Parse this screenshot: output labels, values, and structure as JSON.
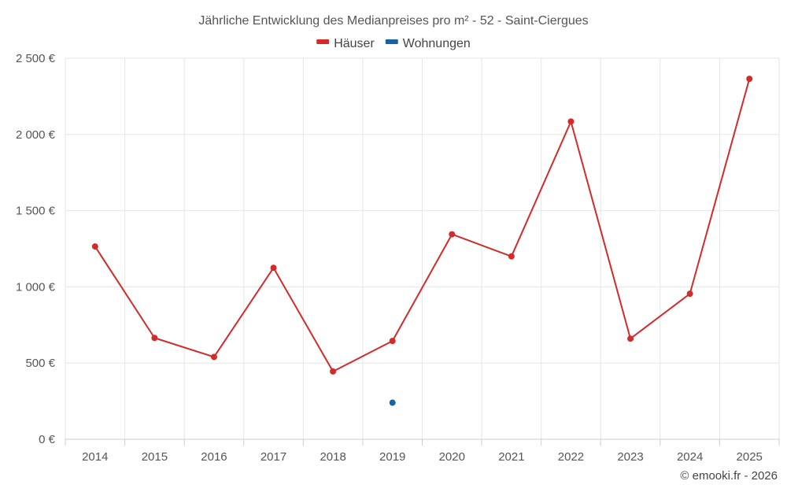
{
  "chart_data": {
    "type": "line",
    "title": "Jährliche Entwicklung des Medianpreises pro m² - 52 - Saint-Ciergues",
    "categories": [
      "2014",
      "2015",
      "2016",
      "2017",
      "2018",
      "2019",
      "2020",
      "2021",
      "2022",
      "2023",
      "2024",
      "2025"
    ],
    "ylim": [
      0,
      2500
    ],
    "yticks": [
      0,
      500,
      1000,
      1500,
      2000,
      2500
    ],
    "ytick_labels": [
      "0 €",
      "500 €",
      "1 000 €",
      "1 500 €",
      "2 000 €",
      "2 500 €"
    ],
    "series": [
      {
        "name": "Häuser",
        "color": "#d32a2a",
        "values": [
          1265,
          665,
          540,
          1125,
          445,
          645,
          1345,
          1200,
          2085,
          660,
          955,
          2365
        ]
      },
      {
        "name": "Wohnungen",
        "color": "#1565a6",
        "values": [
          null,
          null,
          null,
          null,
          null,
          240,
          null,
          null,
          null,
          null,
          null,
          null
        ]
      }
    ],
    "grid": true,
    "legend_position": "top-center"
  },
  "credit": "© emooki.fr - 2026"
}
